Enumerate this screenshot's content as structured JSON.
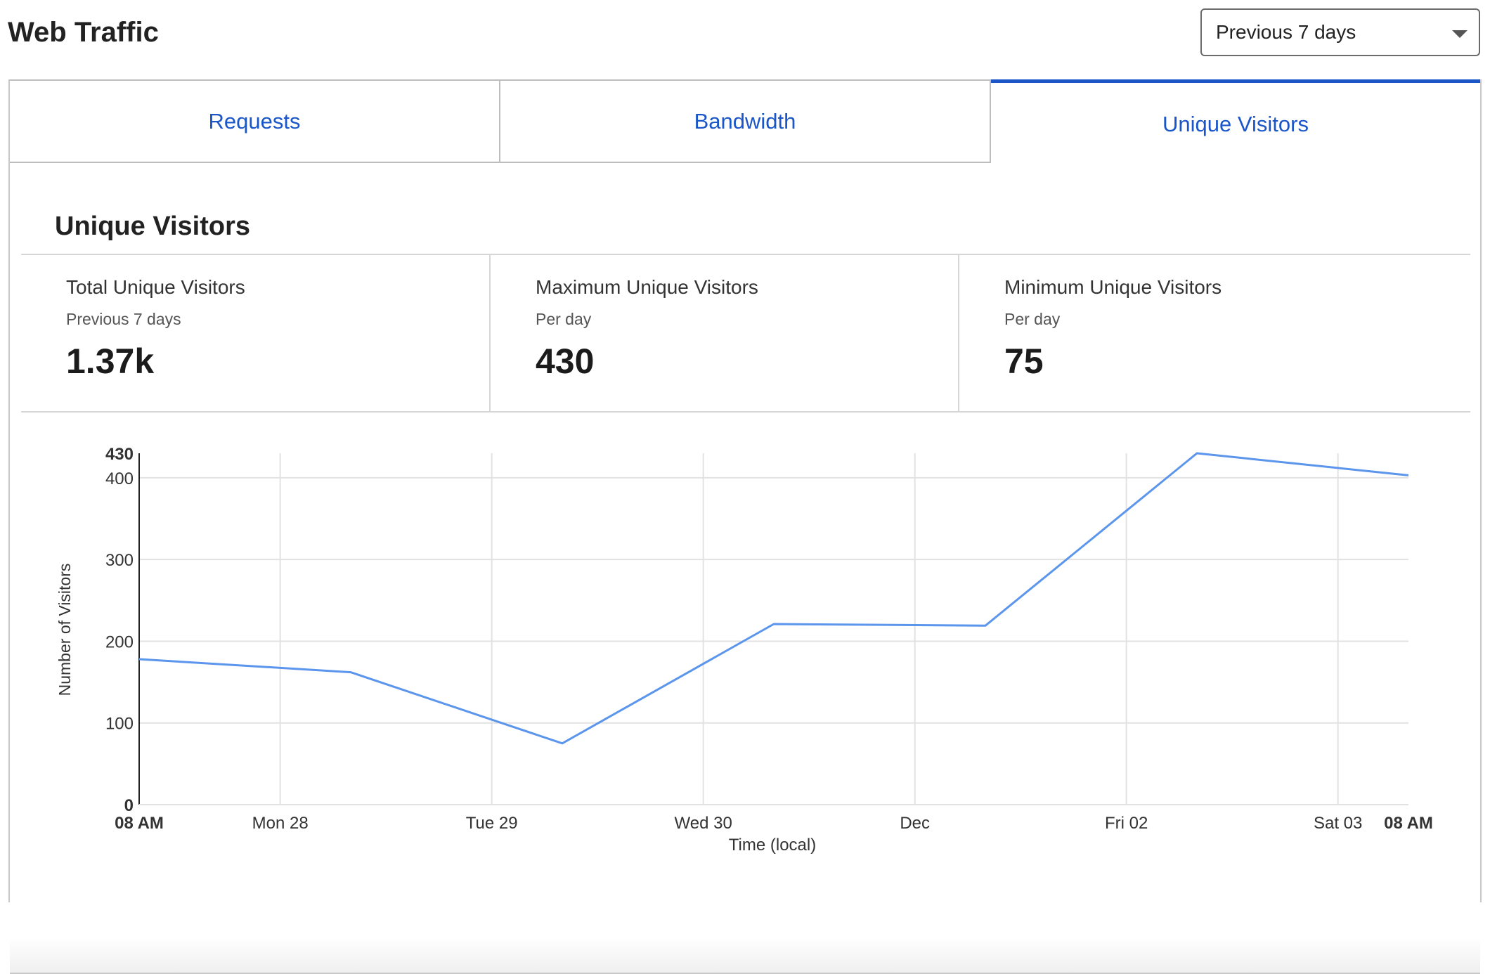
{
  "header": {
    "title": "Web Traffic",
    "range_select": {
      "value": "Previous 7 days"
    }
  },
  "tabs": [
    {
      "label": "Requests",
      "active": false
    },
    {
      "label": "Bandwidth",
      "active": false
    },
    {
      "label": "Unique Visitors",
      "active": true
    }
  ],
  "section": {
    "title": "Unique Visitors"
  },
  "stats": [
    {
      "label": "Total Unique Visitors",
      "sub": "Previous 7 days",
      "value": "1.37k"
    },
    {
      "label": "Maximum Unique Visitors",
      "sub": "Per day",
      "value": "430"
    },
    {
      "label": "Minimum Unique Visitors",
      "sub": "Per day",
      "value": "75"
    }
  ],
  "colors": {
    "accent": "#1a56c8",
    "line": "#5b95ec"
  },
  "chart_data": {
    "type": "line",
    "xlabel": "Time (local)",
    "ylabel": "Number of Visitors",
    "ylim": [
      0,
      430
    ],
    "yticks": [
      0,
      100,
      200,
      300,
      400,
      430
    ],
    "x_domain": [
      "Nov 27 08 AM",
      "Dec 03 08 AM"
    ],
    "x_tick_labels": [
      {
        "label": "08 AM",
        "at": "Nov 27 08 AM",
        "bold": true
      },
      {
        "label": "Mon 28",
        "at": "Nov 28 00:00",
        "bold": false
      },
      {
        "label": "Tue 29",
        "at": "Nov 29 00:00",
        "bold": false
      },
      {
        "label": "Wed 30",
        "at": "Nov 30 00:00",
        "bold": false
      },
      {
        "label": "Dec",
        "at": "Dec 01 00:00",
        "bold": false
      },
      {
        "label": "Fri 02",
        "at": "Dec 02 00:00",
        "bold": false
      },
      {
        "label": "Sat 03",
        "at": "Dec 03 00:00",
        "bold": false
      },
      {
        "label": "08 AM",
        "at": "Dec 03 08 AM",
        "bold": true
      }
    ],
    "grid": true,
    "series": [
      {
        "x": [
          "Nov 27 08 AM",
          "Nov 28 08 AM",
          "Nov 29 08 AM",
          "Nov 30 08 AM",
          "Dec 01 08 AM",
          "Dec 02 08 AM",
          "Dec 03 08 AM"
        ],
        "values": [
          178,
          162,
          75,
          221,
          219,
          430,
          403
        ]
      }
    ]
  }
}
